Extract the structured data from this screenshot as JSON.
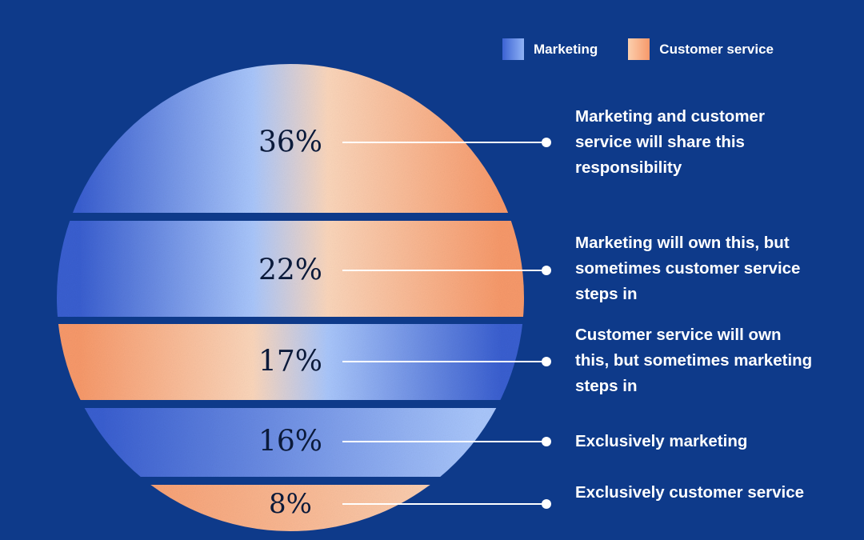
{
  "legend": {
    "marketing": "Marketing",
    "customer_service": "Customer service"
  },
  "colors": {
    "background": "#0e3a8a",
    "marketing_dark": "#3a5fd0",
    "marketing_light": "#a9c6fb",
    "customer_service_light": "#fbd6bb",
    "customer_service_dark": "#f7996a",
    "leader_line": "#ffffff"
  },
  "chart_data": {
    "type": "pie",
    "title": "",
    "series": [
      {
        "label": "36%",
        "value": 36,
        "description": "Marketing and customer service will share this responsibility",
        "gradient": [
          "marketing_dark",
          "marketing_light",
          "customer_service_light",
          "customer_service_dark"
        ]
      },
      {
        "label": "22%",
        "value": 22,
        "description": "Marketing will own this, but sometimes customer service steps in",
        "gradient": [
          "marketing_dark",
          "marketing_light",
          "customer_service_light",
          "customer_service_dark"
        ]
      },
      {
        "label": "17%",
        "value": 17,
        "description": "Customer service will own this, but sometimes marketing steps in",
        "gradient": [
          "customer_service_dark",
          "customer_service_light",
          "marketing_light",
          "marketing_dark"
        ]
      },
      {
        "label": "16%",
        "value": 16,
        "description": "Exclusively marketing",
        "gradient": [
          "marketing_dark",
          "marketing_light"
        ]
      },
      {
        "label": "8%",
        "value": 8,
        "description": "Exclusively customer service",
        "gradient": [
          "customer_service_dark",
          "customer_service_light"
        ]
      }
    ]
  }
}
